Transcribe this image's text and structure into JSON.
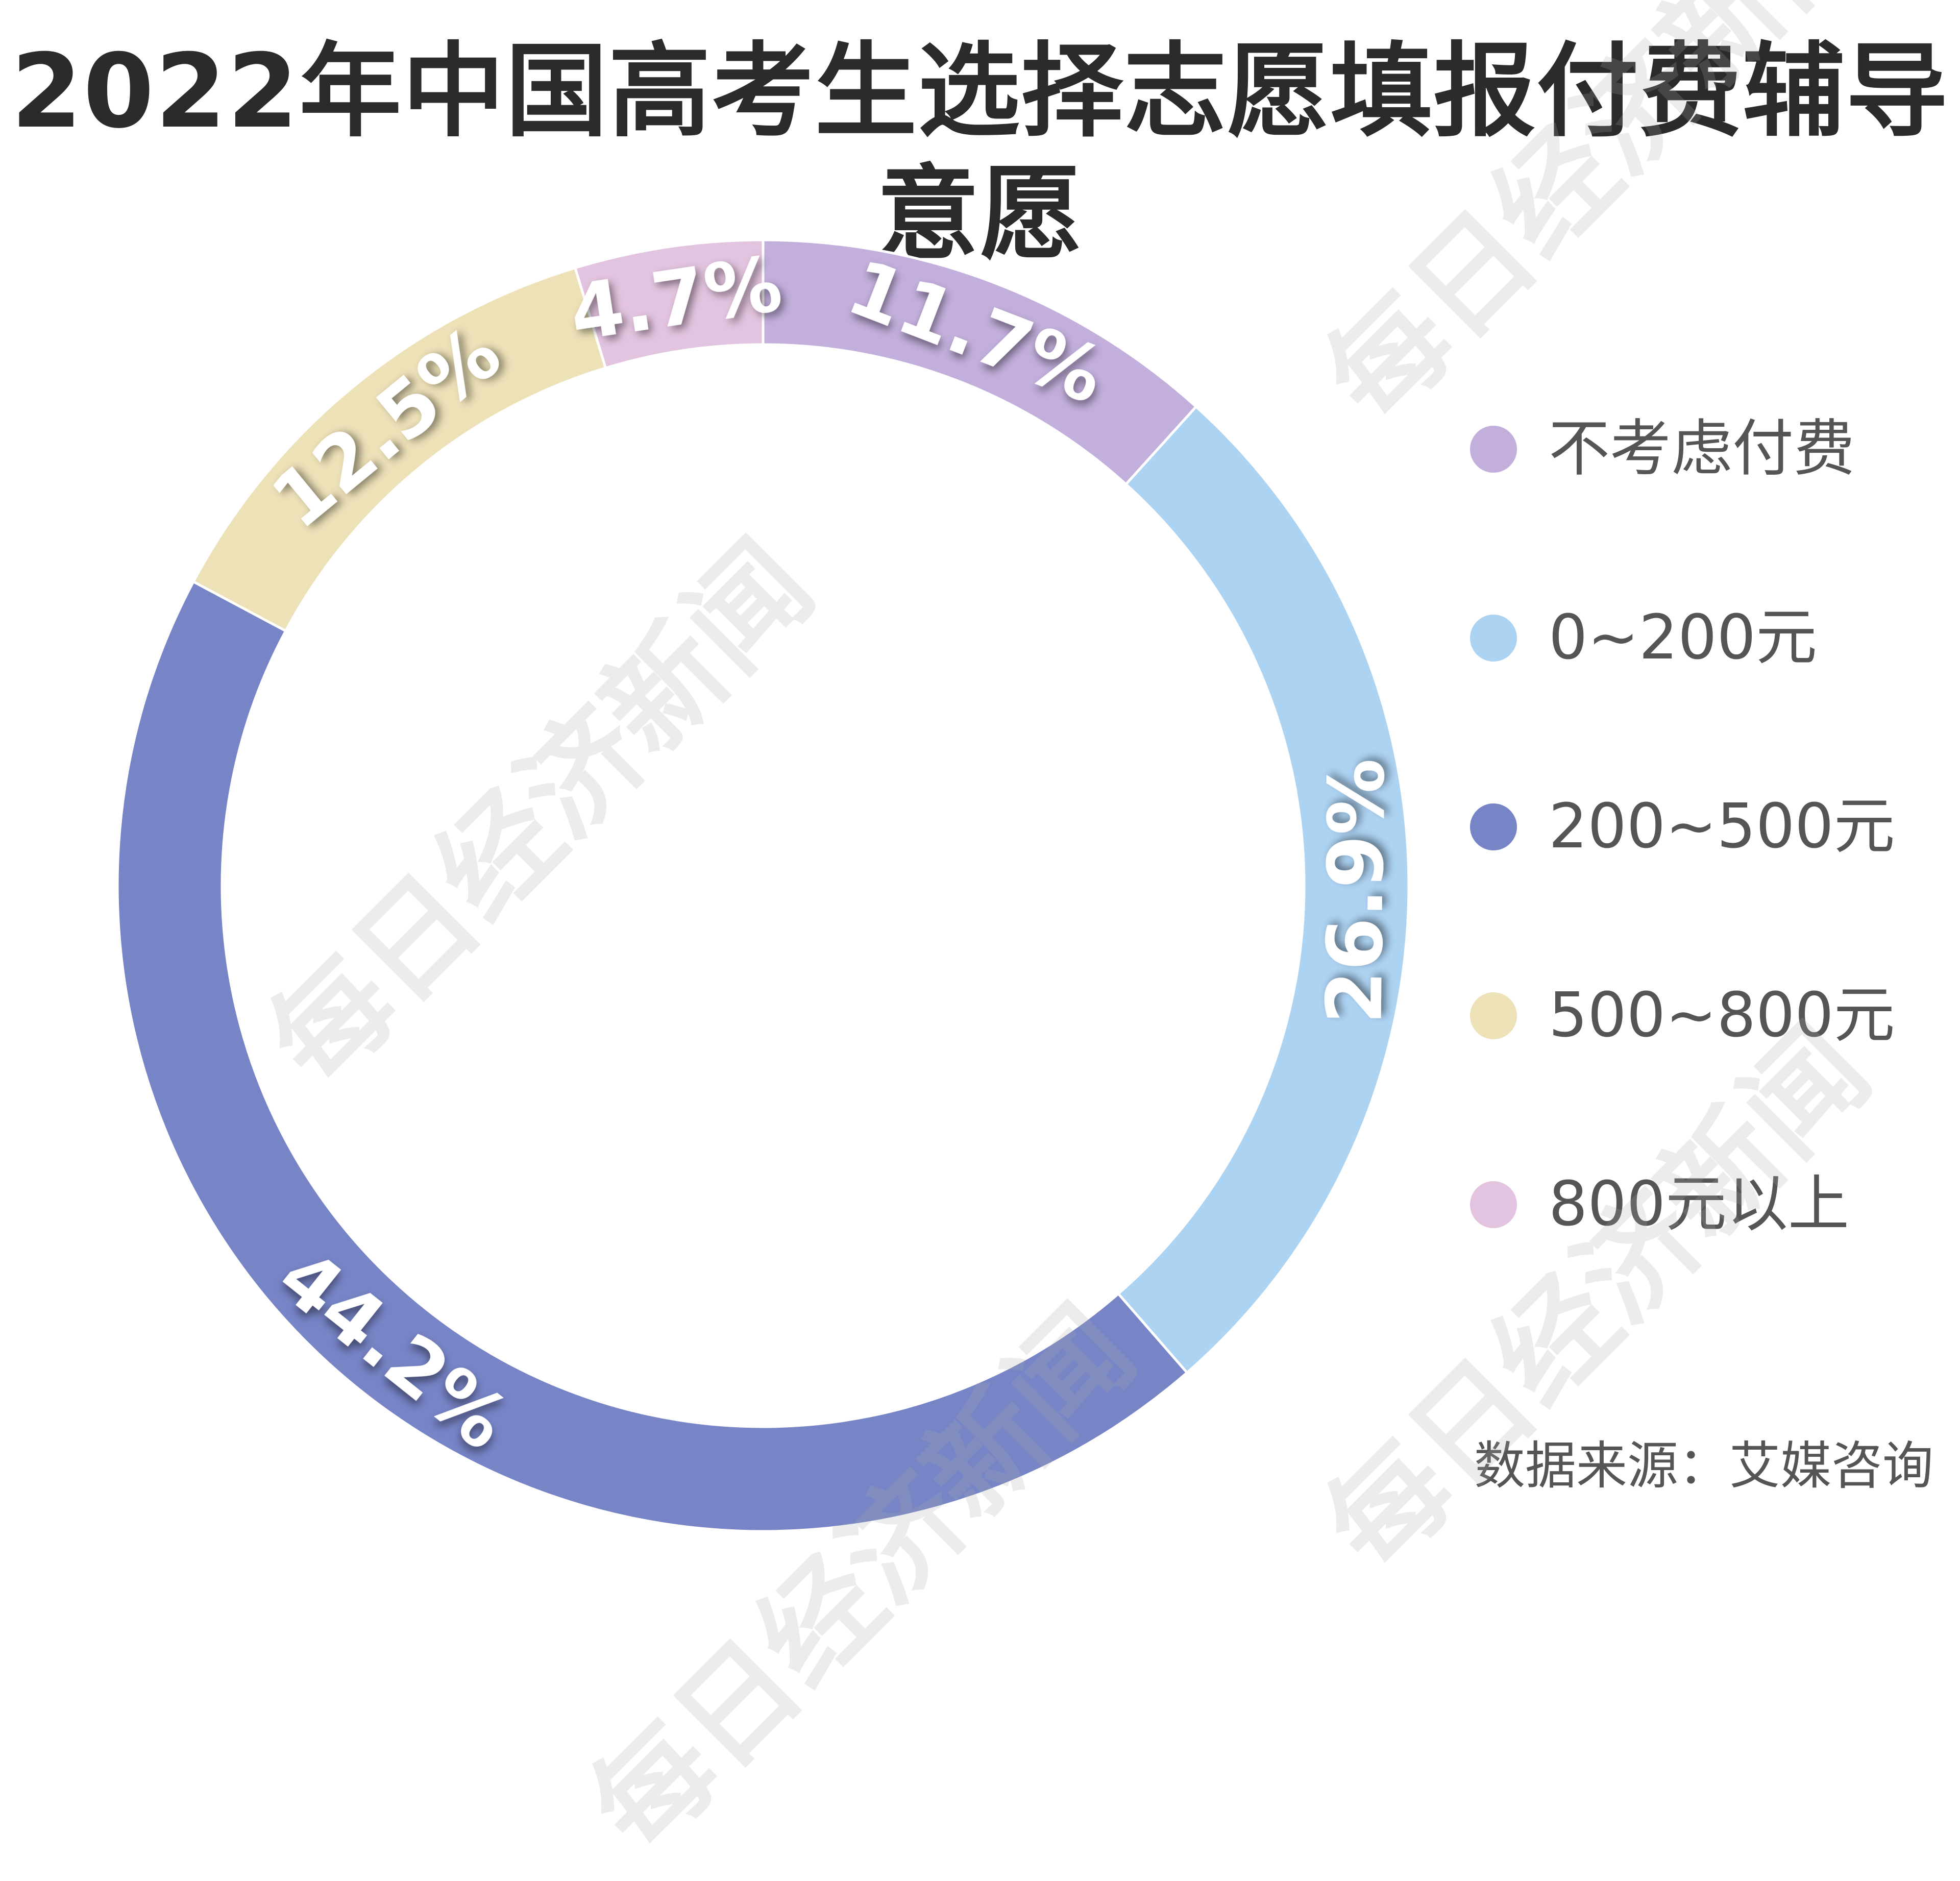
{
  "title": "2022年中国高考生选择志愿填报付费辅导意愿",
  "source": "数据来源：艾媒咨询",
  "watermark": "每日经济新闻",
  "chart_data": {
    "type": "pie",
    "donut": true,
    "title": "2022年中国高考生选择志愿填报付费辅导意愿",
    "legend_position": "right",
    "series": [
      {
        "name": "不考虑付费",
        "value": 11.7,
        "label": "11.7%",
        "color": "#c3afdc"
      },
      {
        "name": "0~200元",
        "value": 26.9,
        "label": "26.9%",
        "color": "#add3f3"
      },
      {
        "name": "200~500元",
        "value": 44.2,
        "label": "44.2%",
        "color": "#7784c6"
      },
      {
        "name": "500~800元",
        "value": 12.5,
        "label": "12.5%",
        "color": "#ede1b8"
      },
      {
        "name": "800元以上",
        "value": 4.7,
        "label": "4.7%",
        "color": "#e3c4e0"
      }
    ]
  }
}
